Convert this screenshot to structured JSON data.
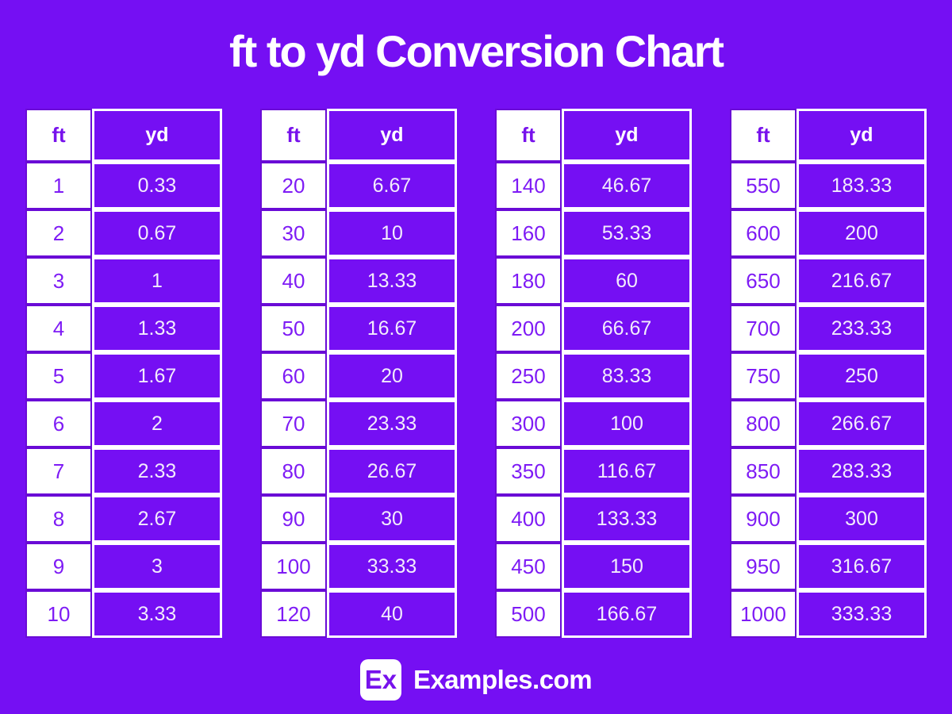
{
  "page": {
    "background_color": "#750FF3",
    "ft_cell_bg": "#FFFFFF",
    "ft_cell_text_color": "#7E1BF5",
    "ft_cell_border_color": "#6A0BD6",
    "yd_cell_border_color": "#FFFFFF",
    "yd_cell_text_color": "#F2EBFC"
  },
  "chart_data": {
    "type": "table",
    "title": "ft to yd Conversion Chart",
    "columns": [
      "ft",
      "yd"
    ],
    "tables": [
      {
        "rows": [
          [
            "1",
            "0.33"
          ],
          [
            "2",
            "0.67"
          ],
          [
            "3",
            "1"
          ],
          [
            "4",
            "1.33"
          ],
          [
            "5",
            "1.67"
          ],
          [
            "6",
            "2"
          ],
          [
            "7",
            "2.33"
          ],
          [
            "8",
            "2.67"
          ],
          [
            "9",
            "3"
          ],
          [
            "10",
            "3.33"
          ]
        ]
      },
      {
        "rows": [
          [
            "20",
            "6.67"
          ],
          [
            "30",
            "10"
          ],
          [
            "40",
            "13.33"
          ],
          [
            "50",
            "16.67"
          ],
          [
            "60",
            "20"
          ],
          [
            "70",
            "23.33"
          ],
          [
            "80",
            "26.67"
          ],
          [
            "90",
            "30"
          ],
          [
            "100",
            "33.33"
          ],
          [
            "120",
            "40"
          ]
        ]
      },
      {
        "rows": [
          [
            "140",
            "46.67"
          ],
          [
            "160",
            "53.33"
          ],
          [
            "180",
            "60"
          ],
          [
            "200",
            "66.67"
          ],
          [
            "250",
            "83.33"
          ],
          [
            "300",
            "100"
          ],
          [
            "350",
            "116.67"
          ],
          [
            "400",
            "133.33"
          ],
          [
            "450",
            "150"
          ],
          [
            "500",
            "166.67"
          ]
        ]
      },
      {
        "rows": [
          [
            "550",
            "183.33"
          ],
          [
            "600",
            "200"
          ],
          [
            "650",
            "216.67"
          ],
          [
            "700",
            "233.33"
          ],
          [
            "750",
            "250"
          ],
          [
            "800",
            "266.67"
          ],
          [
            "850",
            "283.33"
          ],
          [
            "900",
            "300"
          ],
          [
            "950",
            "316.67"
          ],
          [
            "1000",
            "333.33"
          ]
        ]
      }
    ]
  },
  "footer": {
    "logo_text": "Ex",
    "brand": "Examples.com"
  }
}
